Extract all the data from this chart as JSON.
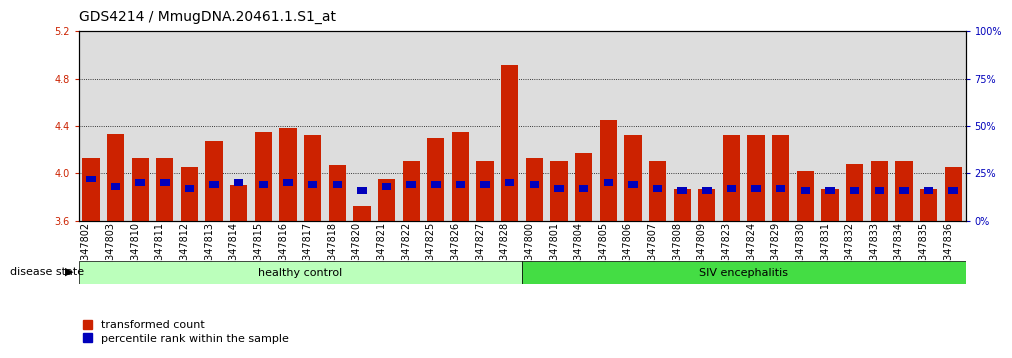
{
  "title": "GDS4214 / MmugDNA.20461.1.S1_at",
  "categories": [
    "GSM347802",
    "GSM347803",
    "GSM347810",
    "GSM347811",
    "GSM347812",
    "GSM347813",
    "GSM347814",
    "GSM347815",
    "GSM347816",
    "GSM347817",
    "GSM347818",
    "GSM347820",
    "GSM347821",
    "GSM347822",
    "GSM347825",
    "GSM347826",
    "GSM347827",
    "GSM347828",
    "GSM347800",
    "GSM347801",
    "GSM347804",
    "GSM347805",
    "GSM347806",
    "GSM347807",
    "GSM347808",
    "GSM347809",
    "GSM347823",
    "GSM347824",
    "GSM347829",
    "GSM347830",
    "GSM347831",
    "GSM347832",
    "GSM347833",
    "GSM347834",
    "GSM347835",
    "GSM347836"
  ],
  "red_values": [
    4.13,
    4.33,
    4.13,
    4.13,
    4.05,
    4.27,
    3.9,
    4.35,
    4.38,
    4.32,
    4.07,
    3.72,
    3.95,
    4.1,
    4.3,
    4.35,
    4.1,
    4.91,
    4.13,
    4.1,
    4.17,
    4.45,
    4.32,
    4.1,
    3.87,
    3.87,
    4.32,
    4.32,
    4.32,
    4.02,
    3.87,
    4.08,
    4.1,
    4.1,
    3.87,
    4.05
  ],
  "blue_percentiles": [
    22,
    18,
    20,
    20,
    17,
    19,
    20,
    19,
    20,
    19,
    19,
    16,
    18,
    19,
    19,
    19,
    19,
    20,
    19,
    17,
    17,
    20,
    19,
    17,
    16,
    16,
    17,
    17,
    17,
    16,
    16,
    16,
    16,
    16,
    16,
    16
  ],
  "ylim_red": [
    3.6,
    5.2
  ],
  "ylim_blue": [
    0,
    100
  ],
  "yticks_red": [
    3.6,
    4.0,
    4.4,
    4.8,
    5.2
  ],
  "yticks_blue": [
    0,
    25,
    50,
    75,
    100
  ],
  "red_color": "#cc2200",
  "blue_color": "#0000bb",
  "healthy_count": 18,
  "healthy_label": "healthy control",
  "siv_label": "SIV encephalitis",
  "healthy_color": "#bbffbb",
  "siv_color": "#44dd44",
  "disease_state_label": "disease state",
  "legend_transformed": "transformed count",
  "legend_percentile": "percentile rank within the sample",
  "bar_width": 0.7,
  "bg_color": "#dddddd",
  "title_fontsize": 10,
  "tick_fontsize": 7,
  "label_fontsize": 8
}
